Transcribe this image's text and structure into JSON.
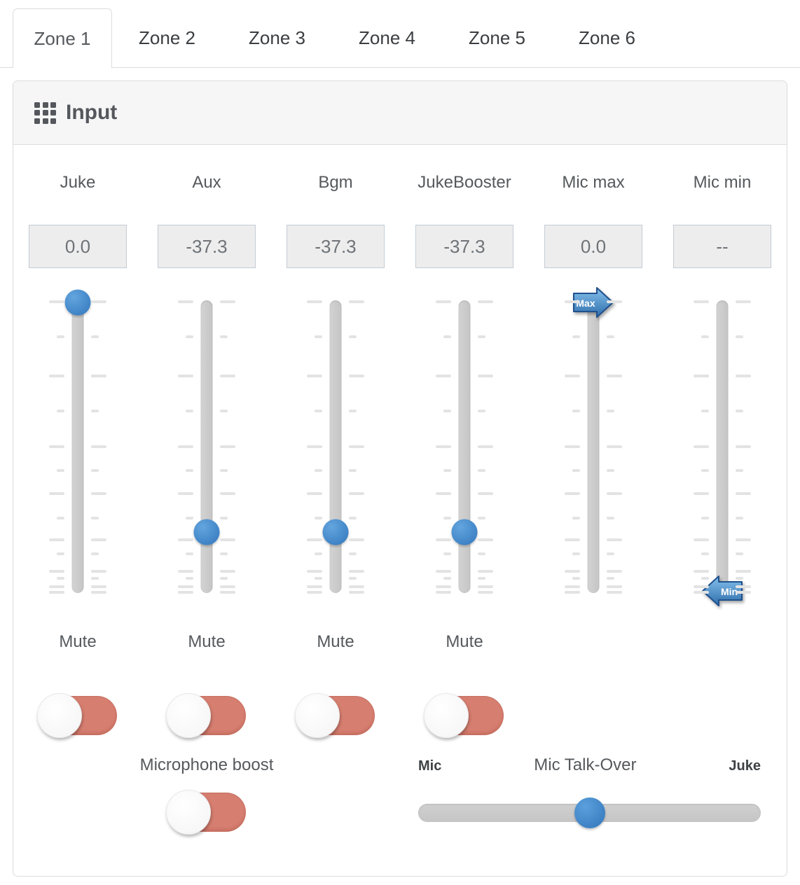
{
  "tabs": {
    "items": [
      {
        "label": "Zone 1",
        "active": true
      },
      {
        "label": "Zone 2",
        "active": false
      },
      {
        "label": "Zone 3",
        "active": false
      },
      {
        "label": "Zone 4",
        "active": false
      },
      {
        "label": "Zone 5",
        "active": false
      },
      {
        "label": "Zone 6",
        "active": false
      }
    ]
  },
  "panel": {
    "title": "Input",
    "icon": "grid-icon"
  },
  "channels": [
    {
      "label": "Juke",
      "value": "0.0",
      "handle": "knob",
      "position_pct": 0.7,
      "mute": {
        "label": "Mute",
        "state": "off"
      }
    },
    {
      "label": "Aux",
      "value": "-37.3",
      "handle": "knob",
      "position_pct": 79.2,
      "mute": {
        "label": "Mute",
        "state": "off"
      }
    },
    {
      "label": "Bgm",
      "value": "-37.3",
      "handle": "knob",
      "position_pct": 79.2,
      "mute": {
        "label": "Mute",
        "state": "off"
      }
    },
    {
      "label": "JukeBooster",
      "value": "-37.3",
      "handle": "knob",
      "position_pct": 79.2,
      "mute": {
        "label": "Mute",
        "state": "off"
      }
    },
    {
      "label": "Mic max",
      "value": "0.0",
      "handle": "max-arrow",
      "handle_label": "Max",
      "position_pct": 0.7
    },
    {
      "label": "Mic min",
      "value": "--",
      "handle": "min-arrow",
      "handle_label": "Min",
      "position_pct": 99.3
    }
  ],
  "slider_scale": {
    "ticks": [
      {
        "pos": 0.4,
        "size": "long"
      },
      {
        "pos": 12.4,
        "size": "short"
      },
      {
        "pos": 25.8,
        "size": "long"
      },
      {
        "pos": 37.8,
        "size": "short"
      },
      {
        "pos": 50.0,
        "size": "long"
      },
      {
        "pos": 58.1,
        "size": "short"
      },
      {
        "pos": 66.0,
        "size": "long"
      },
      {
        "pos": 74.4,
        "size": "short"
      },
      {
        "pos": 81.8,
        "size": "long"
      },
      {
        "pos": 86.6,
        "size": "short"
      },
      {
        "pos": 92.6,
        "size": "long"
      },
      {
        "pos": 95.0,
        "size": "short"
      },
      {
        "pos": 97.8,
        "size": "long"
      },
      {
        "pos": 99.8,
        "size": "long"
      }
    ]
  },
  "microphone_boost": {
    "label": "Microphone boost",
    "state": "off"
  },
  "mic_talk_over": {
    "title": "Mic Talk-Over",
    "left_label": "Mic",
    "right_label": "Juke",
    "position_pct": 50
  },
  "colors": {
    "accent_blue": "#448cd2",
    "toggle_off_red": "#d67e70",
    "track_gray": "#c9c9c9",
    "panel_border": "#dcdcdc"
  }
}
